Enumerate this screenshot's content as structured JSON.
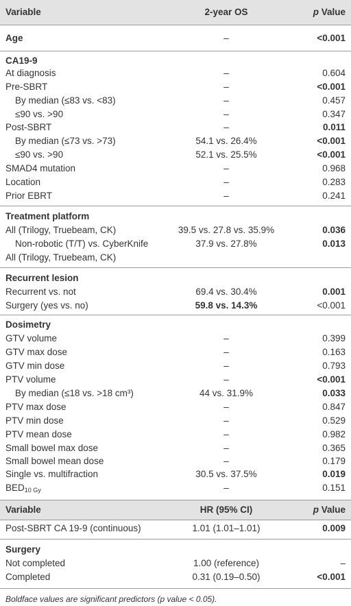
{
  "header": {
    "variable": "Variable",
    "os": "2-year OS",
    "p": "p",
    "value": "Value"
  },
  "rows": [
    {
      "label": "Age",
      "os": "–",
      "p": "<0.001"
    },
    {
      "label": "CA19-9"
    },
    {
      "label": "At diagnosis",
      "os": "–",
      "p": "0.604"
    },
    {
      "label": "Pre-SBRT",
      "os": "–",
      "p": "<0.001"
    },
    {
      "label": "By median (≤83 vs. <83)",
      "os": "–",
      "p": "0.457"
    },
    {
      "label": "≤90 vs. >90",
      "os": "–",
      "p": "0.347"
    },
    {
      "label": "Post-SBRT",
      "os": "–",
      "p": "0.011"
    },
    {
      "label": "By median (≤73 vs. >73)",
      "os": "54.1 vs. 26.4%",
      "p": "<0.001"
    },
    {
      "label": "≤90 vs. >90",
      "os": "52.1 vs. 25.5%",
      "p": "<0.001"
    },
    {
      "label": "SMAD4 mutation",
      "os": "–",
      "p": "0.968"
    },
    {
      "label": "Location",
      "os": "–",
      "p": "0.283"
    },
    {
      "label": "Prior EBRT",
      "os": "–",
      "p": "0.241"
    },
    {
      "label": "Treatment platform"
    },
    {
      "label": "All (Trilogy, Truebeam, CK)",
      "os": "39.5 vs. 27.8 vs. 35.9%",
      "p": "0.036"
    },
    {
      "label": "Non-robotic (T/T) vs. CyberKnife",
      "os": "37.9 vs. 27.8%",
      "p": "0.013"
    },
    {
      "label": "All (Trilogy, Truebeam, CK)"
    },
    {
      "label": "Recurrent lesion"
    },
    {
      "label": "Recurrent vs. not",
      "os": "69.4 vs. 30.4%",
      "p": "0.001"
    },
    {
      "label": "Surgery (yes vs. no)",
      "os": "59.8 vs. 14.3%",
      "p": "<0.001"
    },
    {
      "label": "Dosimetry"
    },
    {
      "label": "GTV volume",
      "os": "–",
      "p": "0.399"
    },
    {
      "label": "GTV max dose",
      "os": "–",
      "p": "0.163"
    },
    {
      "label": "GTV min dose",
      "os": "–",
      "p": "0.793"
    },
    {
      "label": "PTV volume",
      "os": "–",
      "p": "<0.001"
    },
    {
      "label": "By median (≤18 vs. >18 cm³)",
      "os": "44 vs. 31.9%",
      "p": "0.033"
    },
    {
      "label": "PTV max dose",
      "os": "–",
      "p": "0.847"
    },
    {
      "label": "PTV min dose",
      "os": "–",
      "p": "0.529"
    },
    {
      "label": "PTV mean dose",
      "os": "–",
      "p": "0.982"
    },
    {
      "label": "Small bowel max dose",
      "os": "–",
      "p": "0.365"
    },
    {
      "label": "Small bowel mean dose",
      "os": "–",
      "p": "0.179"
    },
    {
      "label": "Single vs. multifraction",
      "os": "30.5 vs. 37.5%",
      "p": "0.019"
    },
    {
      "label": "BED",
      "label_sub": "10 Gy",
      "os": "–",
      "p": "0.151"
    }
  ],
  "header2": {
    "variable": "Variable",
    "os": "HR (95% CI)",
    "p": "p",
    "value": "Value"
  },
  "rows2": [
    {
      "label": "Post-SBRT CA 19-9 (continuous)",
      "os": "1.01 (1.01–1.01)",
      "p": "0.009"
    },
    {
      "label": "Surgery"
    },
    {
      "label": "Not completed",
      "os": "1.00 (reference)",
      "p": "–"
    },
    {
      "label": "Completed",
      "os": "0.31 (0.19–0.50)",
      "p": "<0.001"
    }
  ],
  "footnote": "Boldface values are significant predictors (p value < 0.05)."
}
